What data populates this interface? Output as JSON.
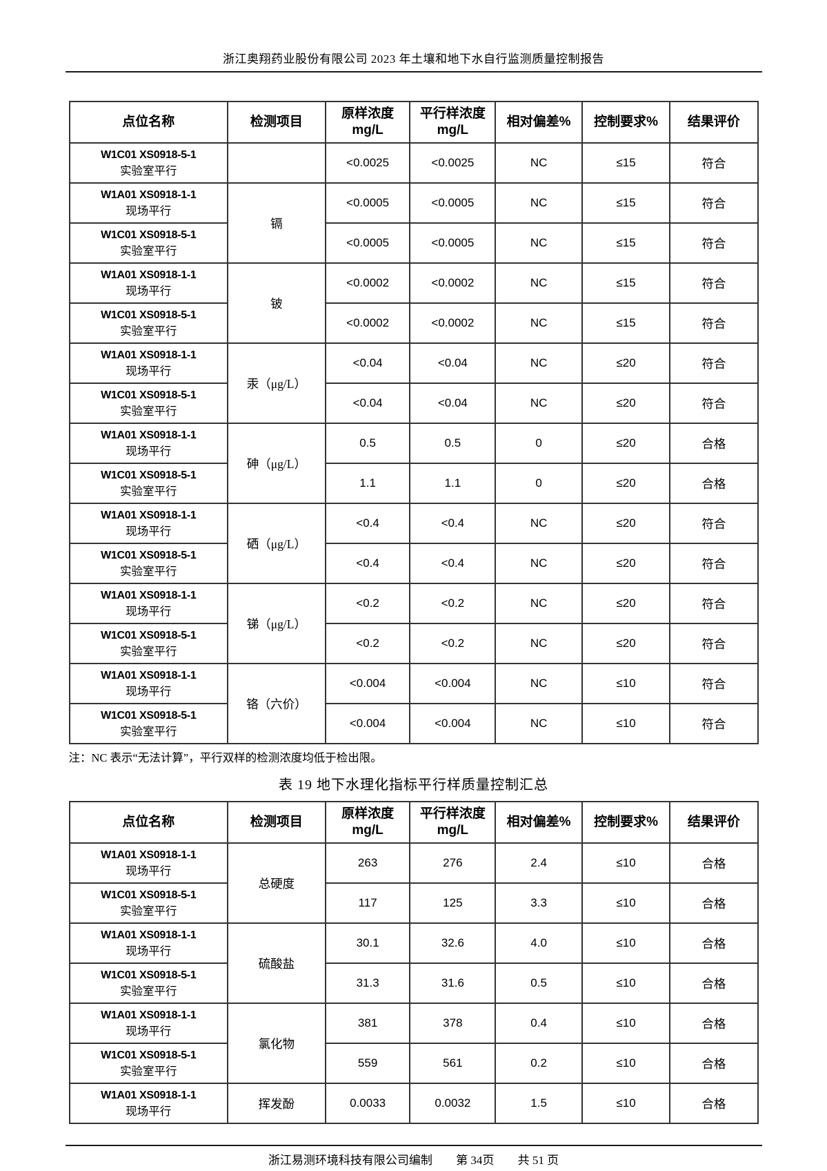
{
  "header": {
    "title": "浙江奥翔药业股份有限公司 2023 年土壤和地下水自行监测质量控制报告"
  },
  "columns": [
    {
      "label": "点位名称"
    },
    {
      "label": "检测项目"
    },
    {
      "label": "原样浓度",
      "unit": "mg/L"
    },
    {
      "label": "平行样浓度",
      "unit": "mg/L"
    },
    {
      "label": "相对偏差%"
    },
    {
      "label": "控制要求%"
    },
    {
      "label": "结果评价"
    }
  ],
  "note": "注：NC 表示“无法计算”，平行双样的检测浓度均低于检出限。",
  "tables": [
    {
      "groups": [
        {
          "item": "",
          "rows": [
            {
              "site_code": "W1C01 XS0918-5-1",
              "site_type": "实验室平行",
              "original": "<0.0025",
              "duplicate": "<0.0025",
              "deviation": "NC",
              "requirement": "≤15",
              "evaluation": "符合"
            }
          ]
        },
        {
          "item": "镉",
          "rows": [
            {
              "site_code": "W1A01 XS0918-1-1",
              "site_type": "现场平行",
              "original": "<0.0005",
              "duplicate": "<0.0005",
              "deviation": "NC",
              "requirement": "≤15",
              "evaluation": "符合"
            },
            {
              "site_code": "W1C01 XS0918-5-1",
              "site_type": "实验室平行",
              "original": "<0.0005",
              "duplicate": "<0.0005",
              "deviation": "NC",
              "requirement": "≤15",
              "evaluation": "符合"
            }
          ]
        },
        {
          "item": "铍",
          "rows": [
            {
              "site_code": "W1A01 XS0918-1-1",
              "site_type": "现场平行",
              "original": "<0.0002",
              "duplicate": "<0.0002",
              "deviation": "NC",
              "requirement": "≤15",
              "evaluation": "符合"
            },
            {
              "site_code": "W1C01 XS0918-5-1",
              "site_type": "实验室平行",
              "original": "<0.0002",
              "duplicate": "<0.0002",
              "deviation": "NC",
              "requirement": "≤15",
              "evaluation": "符合"
            }
          ]
        },
        {
          "item": "汞（μg/L）",
          "rows": [
            {
              "site_code": "W1A01 XS0918-1-1",
              "site_type": "现场平行",
              "original": "<0.04",
              "duplicate": "<0.04",
              "deviation": "NC",
              "requirement": "≤20",
              "evaluation": "符合"
            },
            {
              "site_code": "W1C01 XS0918-5-1",
              "site_type": "实验室平行",
              "original": "<0.04",
              "duplicate": "<0.04",
              "deviation": "NC",
              "requirement": "≤20",
              "evaluation": "符合"
            }
          ]
        },
        {
          "item": "砷（μg/L）",
          "rows": [
            {
              "site_code": "W1A01 XS0918-1-1",
              "site_type": "现场平行",
              "original": "0.5",
              "duplicate": "0.5",
              "deviation": "0",
              "requirement": "≤20",
              "evaluation": "合格"
            },
            {
              "site_code": "W1C01 XS0918-5-1",
              "site_type": "实验室平行",
              "original": "1.1",
              "duplicate": "1.1",
              "deviation": "0",
              "requirement": "≤20",
              "evaluation": "合格"
            }
          ]
        },
        {
          "item": "硒（μg/L）",
          "rows": [
            {
              "site_code": "W1A01 XS0918-1-1",
              "site_type": "现场平行",
              "original": "<0.4",
              "duplicate": "<0.4",
              "deviation": "NC",
              "requirement": "≤20",
              "evaluation": "符合"
            },
            {
              "site_code": "W1C01 XS0918-5-1",
              "site_type": "实验室平行",
              "original": "<0.4",
              "duplicate": "<0.4",
              "deviation": "NC",
              "requirement": "≤20",
              "evaluation": "符合"
            }
          ]
        },
        {
          "item": "锑（μg/L）",
          "rows": [
            {
              "site_code": "W1A01 XS0918-1-1",
              "site_type": "现场平行",
              "original": "<0.2",
              "duplicate": "<0.2",
              "deviation": "NC",
              "requirement": "≤20",
              "evaluation": "符合"
            },
            {
              "site_code": "W1C01 XS0918-5-1",
              "site_type": "实验室平行",
              "original": "<0.2",
              "duplicate": "<0.2",
              "deviation": "NC",
              "requirement": "≤20",
              "evaluation": "符合"
            }
          ]
        },
        {
          "item": "铬（六价）",
          "rows": [
            {
              "site_code": "W1A01 XS0918-1-1",
              "site_type": "现场平行",
              "original": "<0.004",
              "duplicate": "<0.004",
              "deviation": "NC",
              "requirement": "≤10",
              "evaluation": "符合"
            },
            {
              "site_code": "W1C01 XS0918-5-1",
              "site_type": "实验室平行",
              "original": "<0.004",
              "duplicate": "<0.004",
              "deviation": "NC",
              "requirement": "≤10",
              "evaluation": "符合"
            }
          ]
        }
      ]
    },
    {
      "title": "表 19 地下水理化指标平行样质量控制汇总",
      "groups": [
        {
          "item": "总硬度",
          "rows": [
            {
              "site_code": "W1A01 XS0918-1-1",
              "site_type": "现场平行",
              "original": "263",
              "duplicate": "276",
              "deviation": "2.4",
              "requirement": "≤10",
              "evaluation": "合格"
            },
            {
              "site_code": "W1C01 XS0918-5-1",
              "site_type": "实验室平行",
              "original": "117",
              "duplicate": "125",
              "deviation": "3.3",
              "requirement": "≤10",
              "evaluation": "合格"
            }
          ]
        },
        {
          "item": "硫酸盐",
          "rows": [
            {
              "site_code": "W1A01 XS0918-1-1",
              "site_type": "现场平行",
              "original": "30.1",
              "duplicate": "32.6",
              "deviation": "4.0",
              "requirement": "≤10",
              "evaluation": "合格"
            },
            {
              "site_code": "W1C01 XS0918-5-1",
              "site_type": "实验室平行",
              "original": "31.3",
              "duplicate": "31.6",
              "deviation": "0.5",
              "requirement": "≤10",
              "evaluation": "合格"
            }
          ]
        },
        {
          "item": "氯化物",
          "rows": [
            {
              "site_code": "W1A01 XS0918-1-1",
              "site_type": "现场平行",
              "original": "381",
              "duplicate": "378",
              "deviation": "0.4",
              "requirement": "≤10",
              "evaluation": "合格"
            },
            {
              "site_code": "W1C01 XS0918-5-1",
              "site_type": "实验室平行",
              "original": "559",
              "duplicate": "561",
              "deviation": "0.2",
              "requirement": "≤10",
              "evaluation": "合格"
            }
          ]
        },
        {
          "item": "挥发酚",
          "rows": [
            {
              "site_code": "W1A01 XS0918-1-1",
              "site_type": "现场平行",
              "original": "0.0033",
              "duplicate": "0.0032",
              "deviation": "1.5",
              "requirement": "≤10",
              "evaluation": "合格"
            }
          ]
        }
      ]
    }
  ],
  "footer": {
    "company": "浙江易测环境科技有限公司编制",
    "page": "第 34页",
    "total": "共 51 页"
  }
}
